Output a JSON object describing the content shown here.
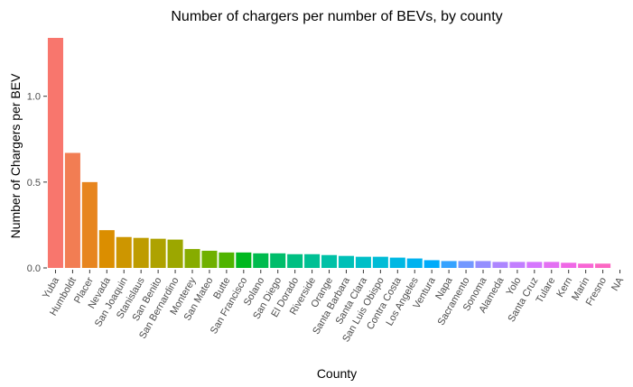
{
  "chart_data": {
    "type": "bar",
    "title": "Number of chargers per number of BEVs, by county",
    "xlabel": "County",
    "ylabel": "Number of Chargers per BEV",
    "ylim": [
      0,
      1.34
    ],
    "yticks": [
      0.0,
      0.5,
      1.0
    ],
    "ytick_labels": [
      "0.0",
      "0.5",
      "1.0"
    ],
    "grid": false,
    "legend": "none",
    "categories": [
      "Yuba",
      "Humboldt",
      "Placer",
      "Nevada",
      "San Joaquin",
      "Stanislaus",
      "San Benito",
      "San Bernardino",
      "Monterey",
      "San Mateo",
      "Butte",
      "San Francisco",
      "Solano",
      "San Diego",
      "El Dorado",
      "Riverside",
      "Orange",
      "Santa Barbara",
      "Santa Clara",
      "San Luis Obispo",
      "Contra Costa",
      "Los Angeles",
      "Ventura",
      "Napa",
      "Sacramento",
      "Sonoma",
      "Alameda",
      "Yolo",
      "Santa Cruz",
      "Tulare",
      "Kern",
      "Marin",
      "Fresno",
      "NA"
    ],
    "values": [
      1.34,
      0.67,
      0.5,
      0.22,
      0.18,
      0.175,
      0.17,
      0.165,
      0.11,
      0.1,
      0.09,
      0.09,
      0.085,
      0.085,
      0.08,
      0.08,
      0.075,
      0.07,
      0.065,
      0.065,
      0.06,
      0.055,
      0.045,
      0.04,
      0.04,
      0.04,
      0.035,
      0.035,
      0.035,
      0.035,
      0.03,
      0.025,
      0.025,
      0.0
    ],
    "colors": [
      "#F8766D",
      "#F27D53",
      "#E7851E",
      "#DB8E00",
      "#CD9600",
      "#BE9C00",
      "#AEA200",
      "#9CA700",
      "#87AC00",
      "#6FB000",
      "#4FB400",
      "#00B81F",
      "#00BB4E",
      "#00BD6A",
      "#00BF81",
      "#00C094",
      "#00C1A6",
      "#00C0B7",
      "#00BFC7",
      "#00BCD6",
      "#00B8E3",
      "#00B2EF",
      "#00ABFA",
      "#35A2FF",
      "#7398FF",
      "#948EFF",
      "#AD86FF",
      "#C27FFF",
      "#D577FE",
      "#E370F3",
      "#EF68E6",
      "#F866D5",
      "#FC67C3",
      "#FF6AAD"
    ]
  }
}
